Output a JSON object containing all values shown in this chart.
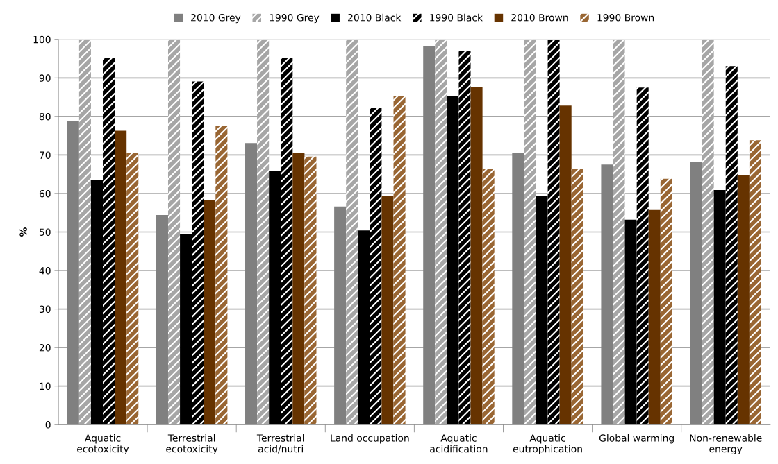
{
  "chart_data": {
    "type": "bar",
    "ylabel": "%",
    "categories": [
      "Aquatic\necotoxicity",
      "Terrestrial\necotoxicity",
      "Terrestrial\nacid/nutri",
      "Land occupation",
      "Aquatic\nacidification",
      "Aquatic\neutrophication",
      "Global warming",
      "Non-renewable\nenergy"
    ],
    "series": [
      {
        "name": "2010 Grey",
        "color": "#808080",
        "values": [
          78.8,
          54.4,
          73.1,
          56.6,
          98.3,
          70.5,
          67.5,
          68.1
        ]
      },
      {
        "name": "1990 Grey",
        "color": "#a6a6a6",
        "values": [
          100,
          100,
          100,
          100,
          100,
          100,
          100,
          100
        ]
      },
      {
        "name": "2010 Black",
        "color": "#000000",
        "values": [
          63.6,
          49.4,
          65.8,
          50.4,
          85.4,
          59.4,
          53.2,
          60.9
        ]
      },
      {
        "name": "1990 Black",
        "color": "#000000",
        "values": [
          95.1,
          89.1,
          95.1,
          82.3,
          97.1,
          99.8,
          87.5,
          93.1
        ]
      },
      {
        "name": "2010 Brown",
        "color": "#663300",
        "values": [
          76.3,
          58.2,
          70.5,
          59.4,
          87.6,
          82.8,
          55.7,
          64.7
        ]
      },
      {
        "name": "1990 Brown",
        "color": "#996633",
        "values": [
          70.6,
          77.5,
          69.6,
          85.2,
          66.5,
          66.4,
          63.8,
          73.8
        ]
      }
    ],
    "ylim": [
      0,
      100
    ],
    "yticks": [
      0,
      10,
      20,
      30,
      40,
      50,
      60,
      70,
      80,
      90,
      100
    ],
    "grid": "y",
    "legend": "top"
  }
}
